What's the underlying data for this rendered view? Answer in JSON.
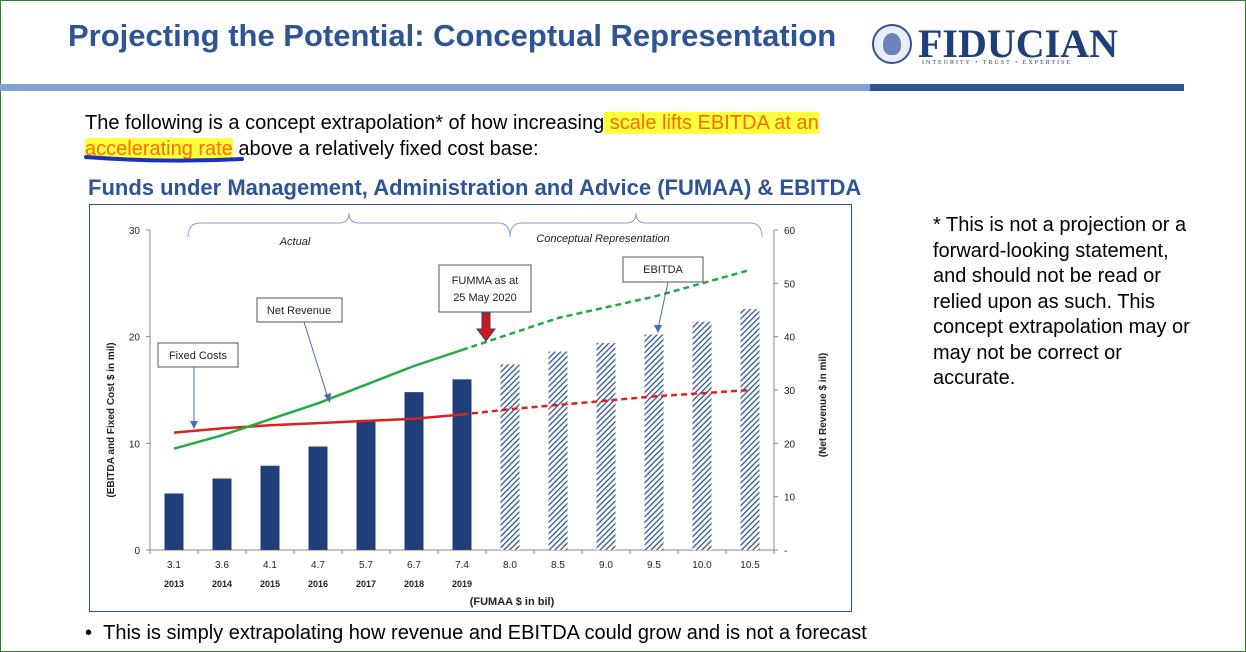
{
  "slide": {
    "title": "Projecting the Potential: Conceptual Representation",
    "logo_text": "FIDUCIAN",
    "logo_tagline": "INTEGRITY • TRUST • EXPERTISE",
    "intro_plain_1": "The following is a concept extrapolation* of how increasing",
    "intro_highlight_1": " scale lifts EBITDA at an ",
    "intro_highlight_2": "accelerating rate",
    "intro_plain_2": " above a relatively fixed cost base:",
    "chart_heading": "Funds under Management, Administration and Advice (FUMAA) & EBITDA",
    "disclaimer": "* This is not a projection or a forward-looking statement, and should not be read or relied upon as such. This concept extrapolation may or may not be correct or accurate.",
    "bullet_marker": "•",
    "bullet": "This is simply extrapolating how revenue and EBITDA could grow and is not a forecast"
  },
  "colors": {
    "title": "#2f5496",
    "bar_actual": "#1f3f7a",
    "bar_projected": "#2f5496",
    "net_revenue": "#22aa44",
    "fixed_costs": "#e02020",
    "highlight": "#ffff3c",
    "highlight_text": "#ff6a00",
    "fumma_arrow": "#d01818"
  },
  "chart_data": {
    "type": "bar",
    "categories": [
      "3.1",
      "3.6",
      "4.1",
      "4.7",
      "5.7",
      "6.7",
      "7.4",
      "8.0",
      "8.5",
      "9.0",
      "9.5",
      "10.0",
      "10.5"
    ],
    "years": [
      "2013",
      "2014",
      "2015",
      "2016",
      "2017",
      "2018",
      "2019",
      "",
      "",
      "",
      "",
      "",
      ""
    ],
    "actual_count": 7,
    "xlabel": "(FUMAA $ in bil)",
    "ylabel_left": "(EBITDA and Fixed Cost $ in mil)",
    "ylabel_right": "(Net Revenue $ in mil)",
    "ylim_left": [
      0,
      30
    ],
    "ylim_right": [
      0,
      60
    ],
    "yticks_left": [
      "0",
      "10",
      "20",
      "30"
    ],
    "yticks_right": [
      "-",
      "10",
      "20",
      "30",
      "40",
      "50",
      "60"
    ],
    "series": [
      {
        "name": "EBITDA",
        "axis": "left",
        "kind": "bar",
        "values": [
          5.3,
          6.7,
          7.9,
          9.7,
          12.1,
          14.8,
          16.0,
          17.4,
          18.6,
          19.4,
          20.2,
          21.4,
          22.6
        ]
      },
      {
        "name": "Net Revenue",
        "axis": "right",
        "kind": "line",
        "values": [
          19,
          21.5,
          24.5,
          27.5,
          31,
          34.5,
          37.5,
          40.5,
          43.5,
          45.5,
          47.5,
          50,
          52.5
        ]
      },
      {
        "name": "Fixed Costs",
        "axis": "left",
        "kind": "line",
        "values": [
          11.0,
          11.4,
          11.7,
          11.9,
          12.1,
          12.3,
          12.7,
          13.2,
          13.6,
          14.0,
          14.4,
          14.7,
          15.0
        ]
      }
    ],
    "brace_labels": {
      "actual": "Actual",
      "projected": "Conceptual Representation"
    },
    "callouts": {
      "fixed_costs": "Fixed Costs",
      "net_revenue": "Net Revenue",
      "ebitda": "EBITDA",
      "fumma_line1": "FUMMA as at",
      "fumma_line2": "25 May 2020"
    }
  }
}
